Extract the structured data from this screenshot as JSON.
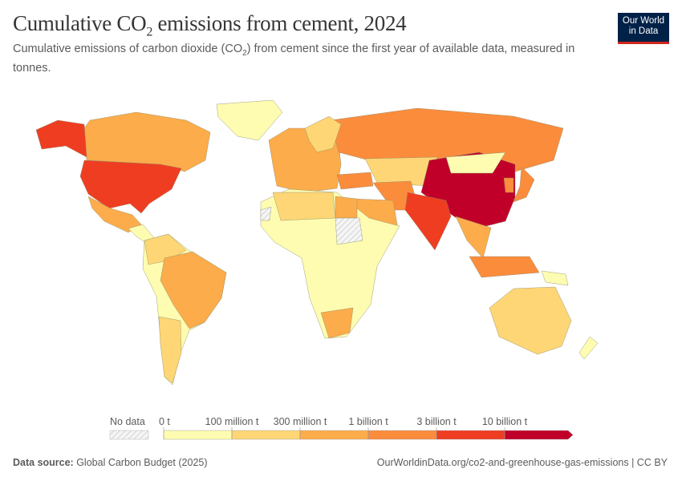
{
  "header": {
    "title_main": "Cumulative CO",
    "title_sub": "2",
    "title_rest": " emissions from cement, 2024",
    "subtitle_a": "Cumulative emissions of carbon dioxide (CO",
    "subtitle_sub": "2",
    "subtitle_b": ") from cement since the first year of available data, measured in tonnes.",
    "logo_line1": "Our World",
    "logo_line2": "in Data"
  },
  "chart_data": {
    "type": "choropleth-map",
    "legend": {
      "no_data_label": "No data",
      "ticks": [
        "0 t",
        "100 million t",
        "300 million t",
        "1 billion t",
        "3 billion t",
        "10 billion t"
      ],
      "bins": [
        {
          "range": "0 t – 100 million t",
          "color": "#fefcb0"
        },
        {
          "range": "100 million t – 300 million t",
          "color": "#fed675"
        },
        {
          "range": "300 million t – 1 billion t",
          "color": "#fcac4a"
        },
        {
          "range": "1 billion t – 3 billion t",
          "color": "#fb8c3c"
        },
        {
          "range": "3 billion t – 10 billion t",
          "color": "#ef3d22"
        },
        {
          "range": "> 10 billion t",
          "color": "#c1002a"
        }
      ],
      "no_data_color": "#e0e0e0"
    },
    "regions": {
      "greenland": 0,
      "canada": 2,
      "usa": 4,
      "alaska": 4,
      "mexico": 2,
      "central_america": 0,
      "south_america": 0,
      "colombia_venezuela": 1,
      "brazil": 2,
      "argentina": 1,
      "europe": 2,
      "russia": 3,
      "scandinavia": 1,
      "central_asia": 1,
      "turkey": 3,
      "iran": 3,
      "saudi_arabia": 2,
      "africa": 0,
      "north_africa": 1,
      "egypt": 2,
      "south_africa": 2,
      "western_sahara": -1,
      "sudan": -1,
      "china": 5,
      "mongolia": 0,
      "india": 4,
      "southeast_asia": 2,
      "japan": 3,
      "korea": 3,
      "indonesia": 3,
      "png": 0,
      "australia": 1,
      "new_zealand": 0
    }
  },
  "footer": {
    "source_label": "Data source:",
    "source_value": " Global Carbon Budget (2025)",
    "url": "OurWorldinData.org/co2-and-greenhouse-gas-emissions | CC BY"
  }
}
